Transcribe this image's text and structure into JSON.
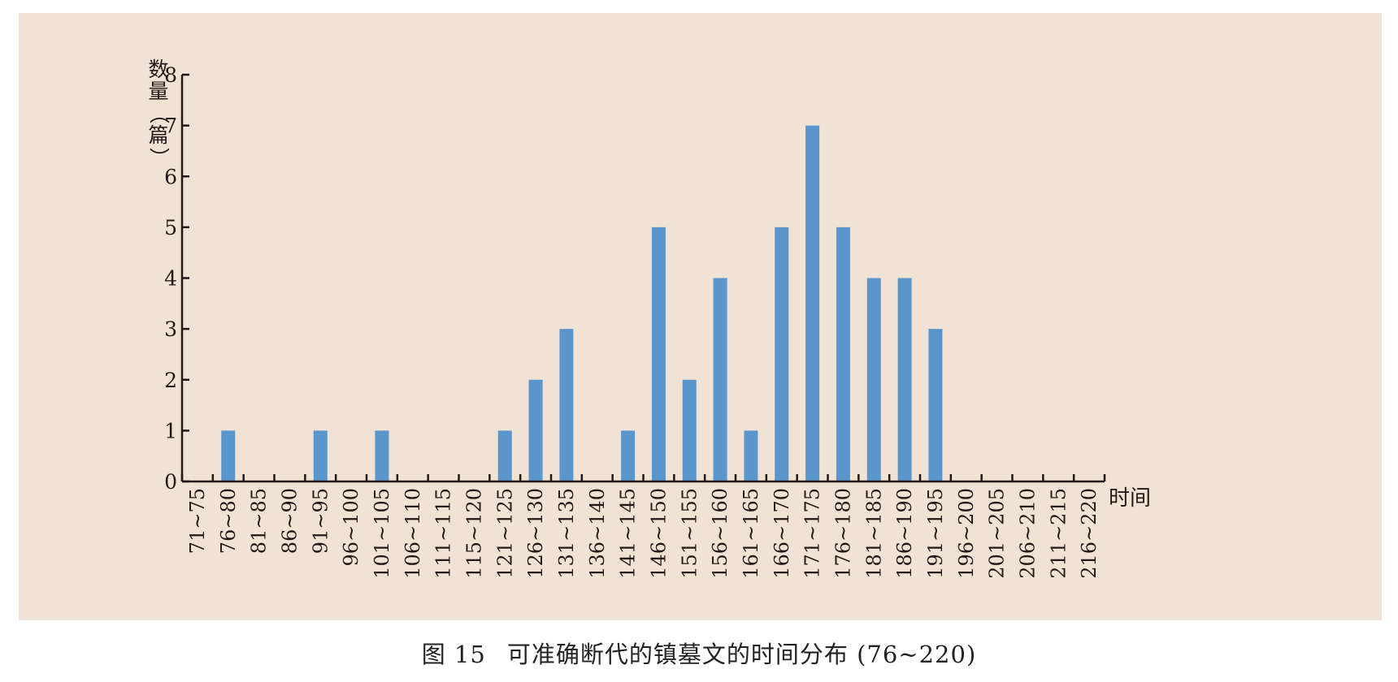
{
  "colors": {
    "panel_background": "#f0e3d5",
    "bar": "#5a95cb",
    "axis": "#231815",
    "text": "#231815"
  },
  "caption": {
    "figure_number": "图 15",
    "text": "可准确断代的镇墓文的时间分布 (76~220)"
  },
  "chart_data": {
    "type": "bar",
    "ylabel": "数量（篇）",
    "xlabel": "时间",
    "ylim": [
      0,
      8
    ],
    "yticks": [
      0,
      1,
      2,
      3,
      4,
      5,
      6,
      7,
      8
    ],
    "grid": false,
    "categories": [
      "71~75",
      "76~80",
      "81~85",
      "86~90",
      "91~95",
      "96~100",
      "101~105",
      "106~110",
      "111~115",
      "115~120",
      "121~125",
      "126~130",
      "131~135",
      "136~140",
      "141~145",
      "146~150",
      "151~155",
      "156~160",
      "161~165",
      "166~170",
      "171~175",
      "176~180",
      "181~185",
      "186~190",
      "191~195",
      "196~200",
      "201~205",
      "206~210",
      "211~215",
      "216~220"
    ],
    "values": [
      0,
      1,
      0,
      0,
      1,
      0,
      1,
      0,
      0,
      0,
      1,
      2,
      3,
      0,
      1,
      5,
      2,
      4,
      1,
      5,
      7,
      5,
      4,
      4,
      3,
      0,
      0,
      0,
      0,
      0
    ]
  }
}
